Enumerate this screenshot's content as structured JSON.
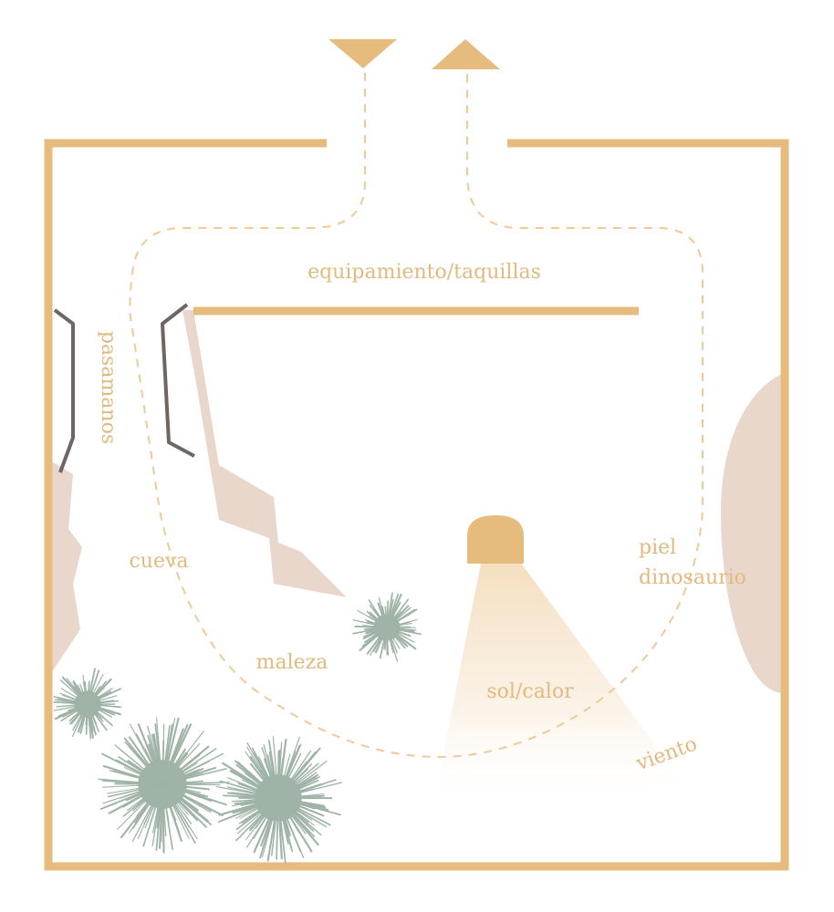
{
  "labels": {
    "equipment": "equipamiento/taquillas",
    "handrail": "pasamanos",
    "cave": "cueva",
    "undergrowth": "maleza",
    "sun_heat": "sol/calor",
    "wind": "viento",
    "dino_skin_line1": "piel",
    "dino_skin_line2": "dinosaurio"
  },
  "colors": {
    "wall": "#e6bb7e",
    "path": "#f0c99a",
    "label": "#e2b97f",
    "rock": "#ead7cc",
    "railing": "#6e6663",
    "shrub": "#9fb3a6",
    "lamp": "#e6bb7e"
  },
  "icons": {
    "entry_marker": "triangle-down-icon",
    "exit_marker": "triangle-up-icon",
    "lamp": "heat-lamp-icon",
    "shrub": "spiky-shrub-icon"
  }
}
